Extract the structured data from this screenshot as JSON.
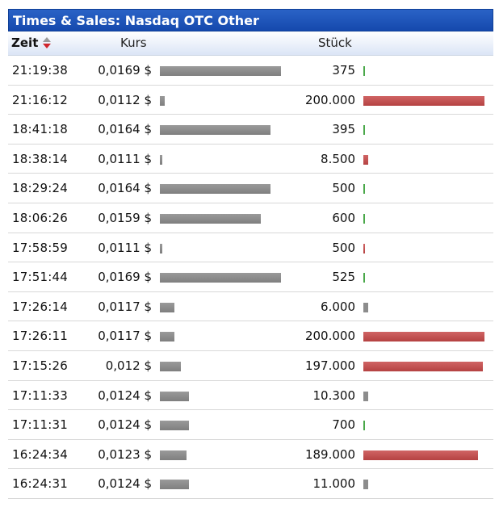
{
  "widget": {
    "title": "Times & Sales: Nasdaq OTC Other",
    "columns": {
      "zeit": "Zeit",
      "kurs": "Kurs",
      "stueck": "Stück"
    }
  },
  "trades": [
    {
      "time": "21:19:38",
      "price": "0,0169 $",
      "price_value": 0.0169,
      "qty": "375",
      "qty_value": 375,
      "direction": "up"
    },
    {
      "time": "21:16:12",
      "price": "0,0112 $",
      "price_value": 0.0112,
      "qty": "200.000",
      "qty_value": 200000,
      "direction": "down"
    },
    {
      "time": "18:41:18",
      "price": "0,0164 $",
      "price_value": 0.0164,
      "qty": "395",
      "qty_value": 395,
      "direction": "up"
    },
    {
      "time": "18:38:14",
      "price": "0,0111 $",
      "price_value": 0.0111,
      "qty": "8.500",
      "qty_value": 8500,
      "direction": "down"
    },
    {
      "time": "18:29:24",
      "price": "0,0164 $",
      "price_value": 0.0164,
      "qty": "500",
      "qty_value": 500,
      "direction": "up"
    },
    {
      "time": "18:06:26",
      "price": "0,0159 $",
      "price_value": 0.0159,
      "qty": "600",
      "qty_value": 600,
      "direction": "up"
    },
    {
      "time": "17:58:59",
      "price": "0,0111 $",
      "price_value": 0.0111,
      "qty": "500",
      "qty_value": 500,
      "direction": "down"
    },
    {
      "time": "17:51:44",
      "price": "0,0169 $",
      "price_value": 0.0169,
      "qty": "525",
      "qty_value": 525,
      "direction": "up"
    },
    {
      "time": "17:26:14",
      "price": "0,0117 $",
      "price_value": 0.0117,
      "qty": "6.000",
      "qty_value": 6000,
      "direction": "neutral"
    },
    {
      "time": "17:26:11",
      "price": "0,0117 $",
      "price_value": 0.0117,
      "qty": "200.000",
      "qty_value": 200000,
      "direction": "down"
    },
    {
      "time": "17:15:26",
      "price": "0,012 $",
      "price_value": 0.012,
      "qty": "197.000",
      "qty_value": 197000,
      "direction": "down"
    },
    {
      "time": "17:11:33",
      "price": "0,0124 $",
      "price_value": 0.0124,
      "qty": "10.300",
      "qty_value": 10300,
      "direction": "neutral"
    },
    {
      "time": "17:11:31",
      "price": "0,0124 $",
      "price_value": 0.0124,
      "qty": "700",
      "qty_value": 700,
      "direction": "up"
    },
    {
      "time": "16:24:34",
      "price": "0,0123 $",
      "price_value": 0.0123,
      "qty": "189.000",
      "qty_value": 189000,
      "direction": "down"
    },
    {
      "time": "16:24:31",
      "price": "0,0124 $",
      "price_value": 0.0124,
      "qty": "11.000",
      "qty_value": 11000,
      "direction": "neutral"
    }
  ],
  "colors": {
    "title_bar": "#1b52b5",
    "up": "#4aa84a",
    "down": "#c04c4c",
    "neutral": "#8c8c8c",
    "price_bar": "#8c8c8c"
  },
  "icons": {
    "sort": "sort-up-down-icon"
  }
}
